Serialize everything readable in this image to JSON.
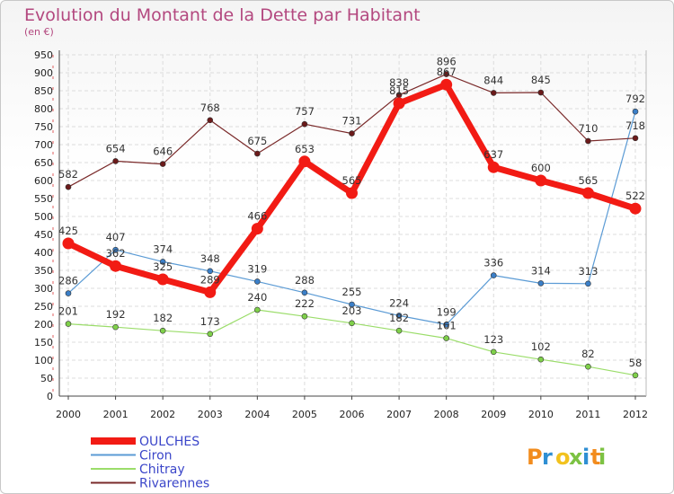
{
  "chart_data": {
    "type": "line",
    "title": "Evolution du Montant de la Dette par Habitant",
    "subtitle": "(en €)",
    "x": [
      "2000",
      "2001",
      "2002",
      "2003",
      "2004",
      "2005",
      "2006",
      "2007",
      "2008",
      "2009",
      "2010",
      "2011",
      "2012"
    ],
    "ylim": [
      0,
      950
    ],
    "yticks": [
      0,
      50,
      100,
      150,
      200,
      250,
      300,
      350,
      400,
      450,
      500,
      550,
      600,
      650,
      700,
      750,
      800,
      850,
      900,
      950
    ],
    "grid": true,
    "legend_position": "bottom-left",
    "series": [
      {
        "name": "OULCHES",
        "color": "#f21b14",
        "marker": "#f21b14",
        "width": 7,
        "dot": 6.5,
        "values": [
          425,
          362,
          325,
          289,
          466,
          653,
          565,
          815,
          867,
          637,
          600,
          565,
          522
        ]
      },
      {
        "name": "Ciron",
        "color": "#5b9bd5",
        "marker": "#3b7fc8",
        "width": 1.2,
        "dot": 3,
        "values": [
          286,
          407,
          374,
          348,
          319,
          288,
          255,
          224,
          199,
          336,
          314,
          313,
          792
        ]
      },
      {
        "name": "Chitray",
        "color": "#9bdd6a",
        "marker": "#7fd04a",
        "width": 1.2,
        "dot": 3,
        "values": [
          201,
          192,
          182,
          173,
          240,
          222,
          203,
          182,
          161,
          123,
          102,
          82,
          58
        ]
      },
      {
        "name": "Rivarennes",
        "color": "#7a2a2a",
        "marker": "#6b1a1a",
        "width": 1.2,
        "dot": 3,
        "values": [
          582,
          654,
          646,
          768,
          675,
          757,
          731,
          838,
          896,
          844,
          845,
          710,
          718
        ]
      }
    ]
  },
  "branding": {
    "logo_text": "Proxiti"
  }
}
